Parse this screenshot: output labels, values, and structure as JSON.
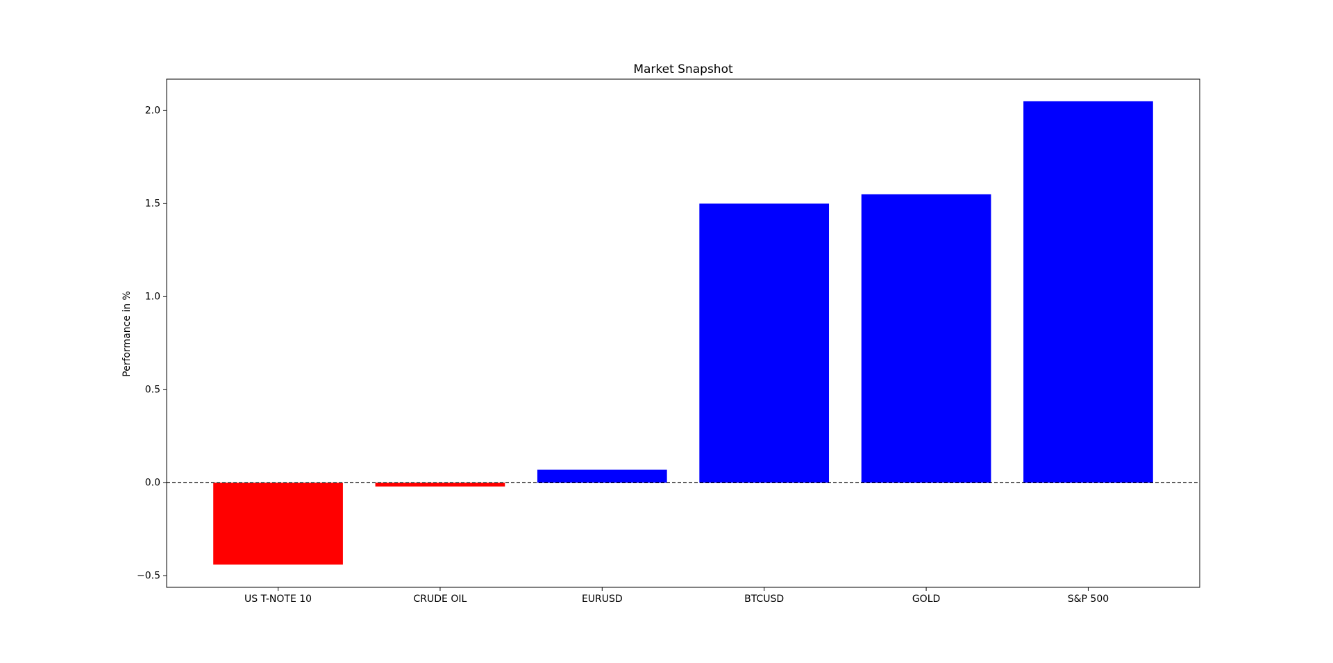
{
  "chart_data": {
    "type": "bar",
    "title": "Market Snapshot",
    "y_label": "Performance in %",
    "categories": [
      "US T-NOTE 10",
      "CRUDE OIL",
      "EURUSD",
      "BTCUSD",
      "GOLD",
      "S&P 500"
    ],
    "values": [
      -0.44,
      -0.02,
      0.07,
      1.5,
      1.55,
      2.05
    ],
    "colors": [
      "#ff0000",
      "#ff0000",
      "#0000ff",
      "#0000ff",
      "#0000ff",
      "#0000ff"
    ],
    "ylim": [
      -0.562,
      2.169
    ],
    "yticks": [
      {
        "value": -0.5,
        "label": "−0.5"
      },
      {
        "value": 0,
        "label": "0.0"
      },
      {
        "value": 0.5,
        "label": "0.5"
      },
      {
        "value": 1,
        "label": "1.0"
      },
      {
        "value": 1.5,
        "label": "1.5"
      },
      {
        "value": 2,
        "label": "2.0"
      }
    ],
    "zero_line": true
  }
}
